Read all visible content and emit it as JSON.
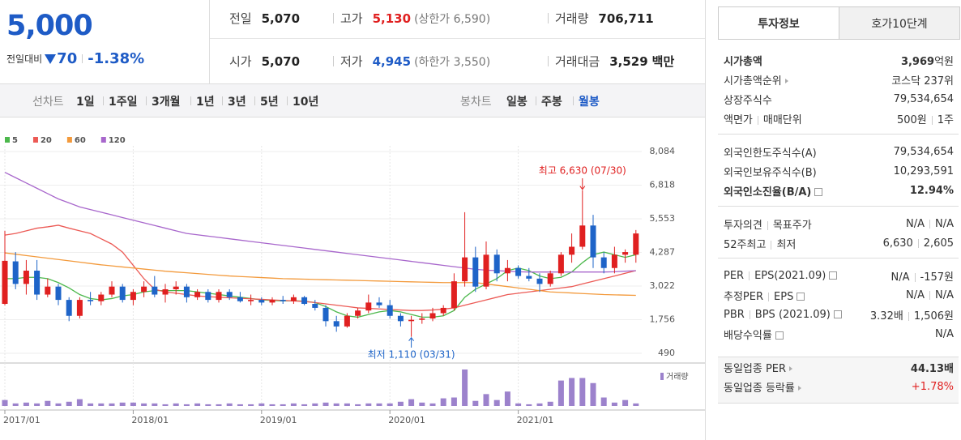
{
  "header": {
    "price": "5,000",
    "change_label": "전일대비",
    "change": "70",
    "change_rate": "-1.38%",
    "stats": [
      [
        {
          "label": "전일",
          "value": "5,070"
        },
        {
          "label": "고가",
          "value": "5,130",
          "note": "(상한가 6,590)"
        },
        {
          "label": "거래량",
          "value": "706,711"
        }
      ],
      [
        {
          "label": "시가",
          "value": "5,070"
        },
        {
          "label": "저가",
          "value": "4,945",
          "note": "(하한가 3,550)"
        },
        {
          "label": "거래대금",
          "value": "3,529",
          "unit": "백만"
        }
      ]
    ]
  },
  "controls": {
    "line_label": "선차트",
    "line_periods": [
      "1일",
      "1주일",
      "3개월",
      "1년",
      "3년",
      "5년",
      "10년"
    ],
    "candle_label": "봉차트",
    "candle_periods": [
      "일봉",
      "주봉",
      "월봉"
    ],
    "active_period": 2
  },
  "chart_data": {
    "type": "candlestick",
    "categories": [
      "2017/01",
      null,
      null,
      null,
      null,
      null,
      null,
      null,
      null,
      null,
      null,
      null,
      "2018/01",
      null,
      null,
      null,
      null,
      null,
      null,
      null,
      null,
      null,
      null,
      null,
      "2019/01",
      null,
      null,
      null,
      null,
      null,
      null,
      null,
      null,
      null,
      null,
      null,
      "2020/01",
      null,
      null,
      null,
      null,
      null,
      null,
      null,
      null,
      null,
      null,
      null,
      "2021/01",
      null,
      null,
      null,
      null,
      null,
      null,
      null,
      null,
      null,
      null,
      null
    ],
    "open": [
      2350,
      3950,
      3100,
      3600,
      2700,
      3000,
      2500,
      1900,
      2500,
      2450,
      2700,
      3000,
      2500,
      2800,
      3000,
      2700,
      2900,
      3000,
      2600,
      2800,
      2500,
      2800,
      2600,
      2450,
      2500,
      2400,
      2500,
      2450,
      2600,
      2350,
      2200,
      1700,
      1500,
      1900,
      2100,
      2400,
      2300,
      1900,
      1700,
      1750,
      1800,
      2000,
      2200,
      3200,
      4100,
      3000,
      4200,
      3500,
      3700,
      3400,
      3300,
      3100,
      3500,
      4200,
      4500,
      5300,
      4100,
      3700,
      4200,
      4200
    ],
    "high": [
      5100,
      4300,
      4000,
      4000,
      3300,
      3100,
      2600,
      2600,
      2800,
      2800,
      3200,
      3100,
      2900,
      3200,
      3400,
      3100,
      3200,
      3100,
      2900,
      2900,
      2900,
      2900,
      2800,
      2700,
      2600,
      2600,
      2650,
      2700,
      2650,
      2500,
      2300,
      1900,
      2000,
      2200,
      2700,
      2600,
      2500,
      2000,
      1900,
      2000,
      2200,
      2300,
      3500,
      5800,
      4500,
      4700,
      4400,
      4000,
      3800,
      3700,
      3500,
      3600,
      4300,
      5000,
      6630,
      5700,
      4300,
      4500,
      4400,
      5130
    ],
    "low": [
      2300,
      2900,
      2700,
      2500,
      2600,
      2300,
      1700,
      1800,
      2300,
      2300,
      2600,
      2400,
      2300,
      2600,
      2600,
      2400,
      2700,
      2400,
      2500,
      2400,
      2400,
      2500,
      2400,
      2300,
      2300,
      2300,
      2350,
      2350,
      2300,
      2100,
      1500,
      1300,
      1450,
      1800,
      2000,
      2200,
      1800,
      1500,
      1110,
      1600,
      1700,
      1900,
      2100,
      3000,
      2800,
      2900,
      3200,
      3200,
      3300,
      3200,
      2800,
      3000,
      3400,
      3900,
      4400,
      3700,
      3500,
      3500,
      3900,
      3900
    ],
    "close": [
      3970,
      3100,
      3600,
      2700,
      3000,
      2500,
      1900,
      2500,
      2450,
      2700,
      3000,
      2500,
      2800,
      3000,
      2700,
      2900,
      3000,
      2600,
      2800,
      2500,
      2800,
      2600,
      2450,
      2500,
      2400,
      2500,
      2450,
      2600,
      2350,
      2200,
      1700,
      1500,
      1900,
      2100,
      2400,
      2300,
      1900,
      1700,
      1750,
      1800,
      2000,
      2200,
      3200,
      4100,
      3000,
      4200,
      3500,
      3700,
      3400,
      3300,
      3100,
      3500,
      4200,
      4500,
      5300,
      4100,
      3700,
      4200,
      4300,
      5000
    ],
    "up_color": "#e02020",
    "down_color": "#1e64c8",
    "series": [
      {
        "name": "5",
        "color": "#4cb84c",
        "values": [
          3300,
          3300,
          3350,
          3350,
          3300,
          3150,
          2950,
          2700,
          2550,
          2500,
          2550,
          2650,
          2700,
          2800,
          2850,
          2850,
          2850,
          2850,
          2800,
          2750,
          2700,
          2650,
          2600,
          2550,
          2500,
          2480,
          2460,
          2470,
          2450,
          2400,
          2250,
          2050,
          1900,
          1850,
          1950,
          2050,
          2100,
          2050,
          1950,
          1850,
          1850,
          1900,
          2100,
          2600,
          2900,
          3100,
          3300,
          3600,
          3700,
          3600,
          3400,
          3300,
          3350,
          3550,
          3900,
          4200,
          4300,
          4200,
          4100,
          4200
        ]
      },
      {
        "name": "20",
        "color": "#ec5a55",
        "values": [
          4940,
          5000,
          5100,
          5200,
          5250,
          5310,
          5200,
          5100,
          5000,
          4800,
          4600,
          4300,
          3800,
          3300,
          2900,
          2800,
          2750,
          2700,
          2650,
          2620,
          2600,
          2580,
          2560,
          2540,
          2520,
          2500,
          2480,
          2460,
          2440,
          2400,
          2350,
          2300,
          2250,
          2200,
          2180,
          2160,
          2140,
          2120,
          2100,
          2100,
          2120,
          2150,
          2200,
          2300,
          2400,
          2500,
          2600,
          2700,
          2750,
          2800,
          2850,
          2900,
          2950,
          3000,
          3100,
          3200,
          3300,
          3400,
          3500,
          3600
        ]
      },
      {
        "name": "60",
        "color": "#f39a3c",
        "values": [
          4270,
          4220,
          4170,
          4120,
          4070,
          4020,
          3970,
          3920,
          3870,
          3820,
          3780,
          3740,
          3700,
          3660,
          3620,
          3580,
          3550,
          3520,
          3490,
          3460,
          3430,
          3400,
          3380,
          3360,
          3340,
          3320,
          3300,
          3290,
          3280,
          3270,
          3260,
          3250,
          3240,
          3230,
          3220,
          3210,
          3200,
          3190,
          3180,
          3170,
          3160,
          3150,
          3150,
          3150,
          3150,
          3100,
          3050,
          3000,
          2950,
          2900,
          2850,
          2800,
          2780,
          2760,
          2740,
          2720,
          2700,
          2690,
          2680,
          2670
        ]
      },
      {
        "name": "120",
        "color": "#a867cc",
        "values": [
          7300,
          7100,
          6900,
          6700,
          6500,
          6300,
          6150,
          6000,
          5900,
          5800,
          5700,
          5600,
          5500,
          5400,
          5300,
          5200,
          5100,
          5000,
          4950,
          4900,
          4850,
          4800,
          4750,
          4700,
          4650,
          4600,
          4550,
          4500,
          4450,
          4400,
          4350,
          4300,
          4250,
          4200,
          4150,
          4100,
          4050,
          4000,
          3950,
          3900,
          3850,
          3800,
          3750,
          3700,
          3650,
          3620,
          3600,
          3580,
          3560,
          3550,
          3550,
          3550,
          3550,
          3550,
          3550,
          3550,
          3550,
          3560,
          3580,
          3600
        ]
      }
    ],
    "volume": {
      "name": "거래량",
      "color": "#9c82cc",
      "values": [
        7,
        3,
        4,
        3,
        6,
        3,
        5,
        8,
        3,
        3,
        3,
        4,
        4,
        3,
        3,
        2,
        3,
        2,
        3,
        2,
        2,
        3,
        2,
        2,
        3,
        2,
        2,
        3,
        2,
        3,
        4,
        3,
        3,
        2,
        3,
        3,
        3,
        5,
        8,
        4,
        3,
        9,
        10,
        43,
        6,
        14,
        7,
        17,
        3,
        2,
        3,
        5,
        30,
        33,
        33,
        27,
        10,
        4,
        7,
        3
      ]
    },
    "ylim": [
      490,
      8084
    ],
    "yticks": [
      490,
      {
        "value": 1756,
        "label": "1,756"
      },
      {
        "value": 3022,
        "label": "3,022"
      },
      {
        "value": 4287,
        "label": "4,287"
      },
      {
        "value": 5553,
        "label": "5,553"
      },
      {
        "value": 6818,
        "label": "6,818"
      },
      {
        "value": 8084,
        "label": "8,084"
      }
    ],
    "annotations": {
      "high": "최고 6,630 (07/30)",
      "low": "최저 1,110 (03/31)"
    },
    "grid": true
  },
  "sidebar": {
    "tabs": [
      "투자정보",
      "호가10단계"
    ],
    "groups": [
      [
        {
          "label": "시가총액",
          "value": "3,969",
          "unit": "억원"
        },
        {
          "label": "시가총액순위",
          "value": "코스닥 237위"
        },
        {
          "label": "상장주식수",
          "value": "79,534,654"
        },
        {
          "label": [
            "액면가",
            "매매단위"
          ],
          "value": [
            "500원",
            "1주"
          ]
        }
      ],
      [
        {
          "label": "외국인한도주식수(A)",
          "value": "79,534,654"
        },
        {
          "label": "외국인보유주식수(B)",
          "value": "10,293,591"
        },
        {
          "label": "외국인소진율(B/A)",
          "value": "12.94%"
        }
      ],
      [
        {
          "label": [
            "투자의견",
            "목표주가"
          ],
          "value": [
            "N/A",
            "N/A"
          ]
        },
        {
          "label": [
            "52주최고",
            "최저"
          ],
          "value": [
            "6,630",
            "2,605"
          ]
        }
      ],
      [
        {
          "label": [
            "PER",
            "EPS(2021.09)"
          ],
          "value": [
            "N/A",
            "-157원"
          ]
        },
        {
          "label": [
            "추정PER",
            "EPS"
          ],
          "value": [
            "N/A",
            "N/A"
          ]
        },
        {
          "label": [
            "PBR",
            "BPS (2021.09)"
          ],
          "value": [
            "3.32배",
            "1,506원"
          ]
        },
        {
          "label": "배당수익률",
          "value": "N/A"
        }
      ],
      [
        {
          "label": "동일업종 PER",
          "value": "44.13배"
        },
        {
          "label": "동일업종 등락률",
          "value": "+1.78%"
        }
      ]
    ]
  }
}
